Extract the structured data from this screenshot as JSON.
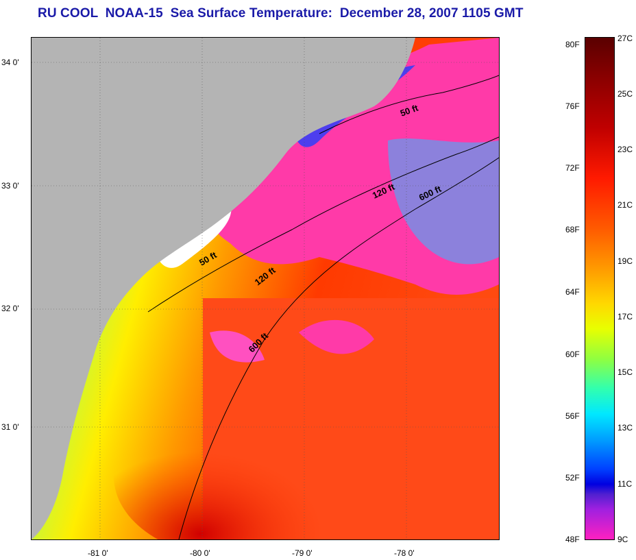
{
  "title": "RU COOL  NOAA-15  Sea Surface Temperature:  December 28, 2007 1105 GMT",
  "map": {
    "lat_labels": [
      "34 0'",
      "33 0'",
      "32 0'",
      "31 0'"
    ],
    "lon_labels": [
      "-81 0'",
      "-80 0'",
      "-79 0'",
      "-78 0'"
    ],
    "isobath_labels": [
      "50 ft",
      "120 ft",
      "600 ft",
      "50 ft",
      "120 ft",
      "600 ft"
    ],
    "land_color": "#b4b4b4",
    "cloud_color": "#ffffff"
  },
  "colorbar": {
    "fahrenheit_labels": [
      "80F",
      "76F",
      "72F",
      "68F",
      "64F",
      "60F",
      "56F",
      "52F",
      "48F"
    ],
    "celsius_labels": [
      "27C",
      "25C",
      "23C",
      "21C",
      "19C",
      "17C",
      "15C",
      "13C",
      "11C",
      "9C"
    ]
  }
}
